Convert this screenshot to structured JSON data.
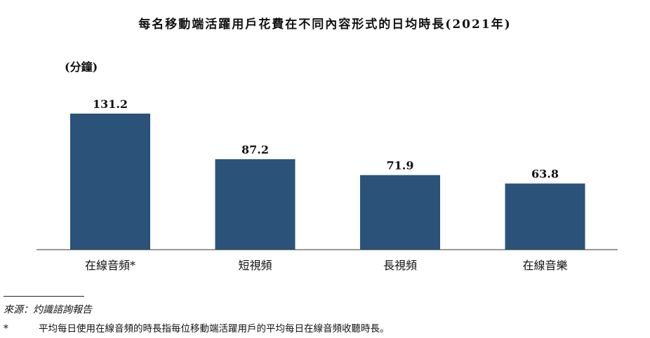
{
  "chart_data": {
    "type": "bar",
    "title": "每名移動端活躍用戶花費在不同內容形式的日均時長(2021年)",
    "unit_label": "(分鐘)",
    "categories": [
      "在線音頻*",
      "短視頻",
      "長視頻",
      "在線音樂"
    ],
    "values": [
      131.2,
      87.2,
      71.9,
      63.8
    ],
    "value_labels": [
      "131.2",
      "87.2",
      "71.9",
      "63.8"
    ],
    "ylim": [
      0,
      131.2
    ],
    "grid": false,
    "bar_color": "#2b5379"
  },
  "footer": {
    "source": "來源：灼識諮詢報告",
    "note_mark": "*",
    "note_text": "平均每日使用在線音頻的時長指每位移動端活躍用戶的平均每日在線音頻收聽時長。"
  }
}
